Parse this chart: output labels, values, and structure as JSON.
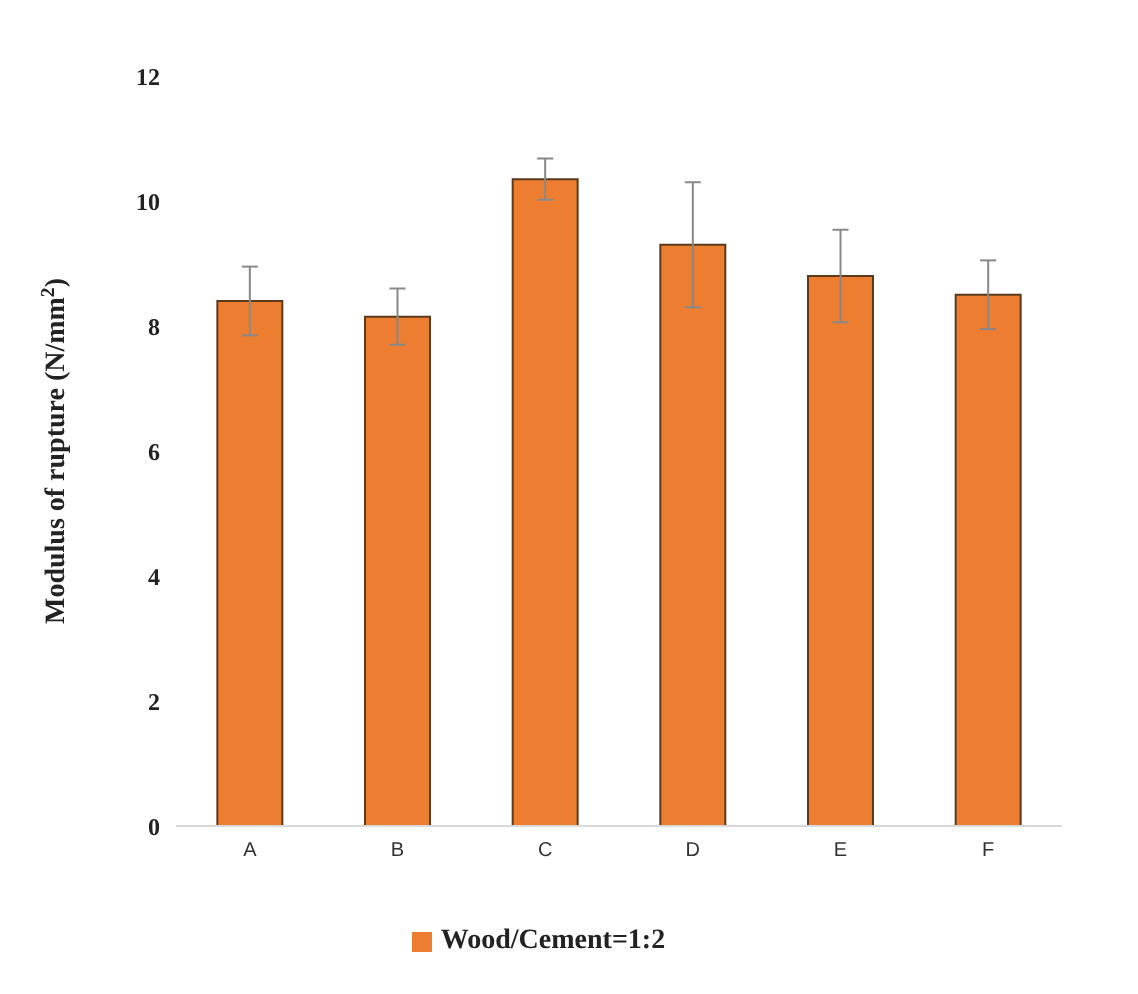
{
  "chart_data": {
    "type": "bar",
    "ylabel": "Modulus of rupture (N/mm$^{2}$)",
    "categories": [
      "A",
      "B",
      "C",
      "D",
      "E",
      "F"
    ],
    "series": [
      {
        "name": "Wood/Cement=1:2",
        "color": "#ed7d31",
        "values": [
          8.4,
          8.15,
          10.35,
          9.3,
          8.8,
          8.5
        ],
        "errors": [
          0.55,
          0.45,
          0.33,
          1.0,
          0.74,
          0.55
        ]
      }
    ],
    "ylim": [
      0,
      12
    ],
    "yticks": [
      0,
      2,
      4,
      6,
      8,
      10,
      12
    ],
    "grid": false,
    "legend": "bottom"
  }
}
